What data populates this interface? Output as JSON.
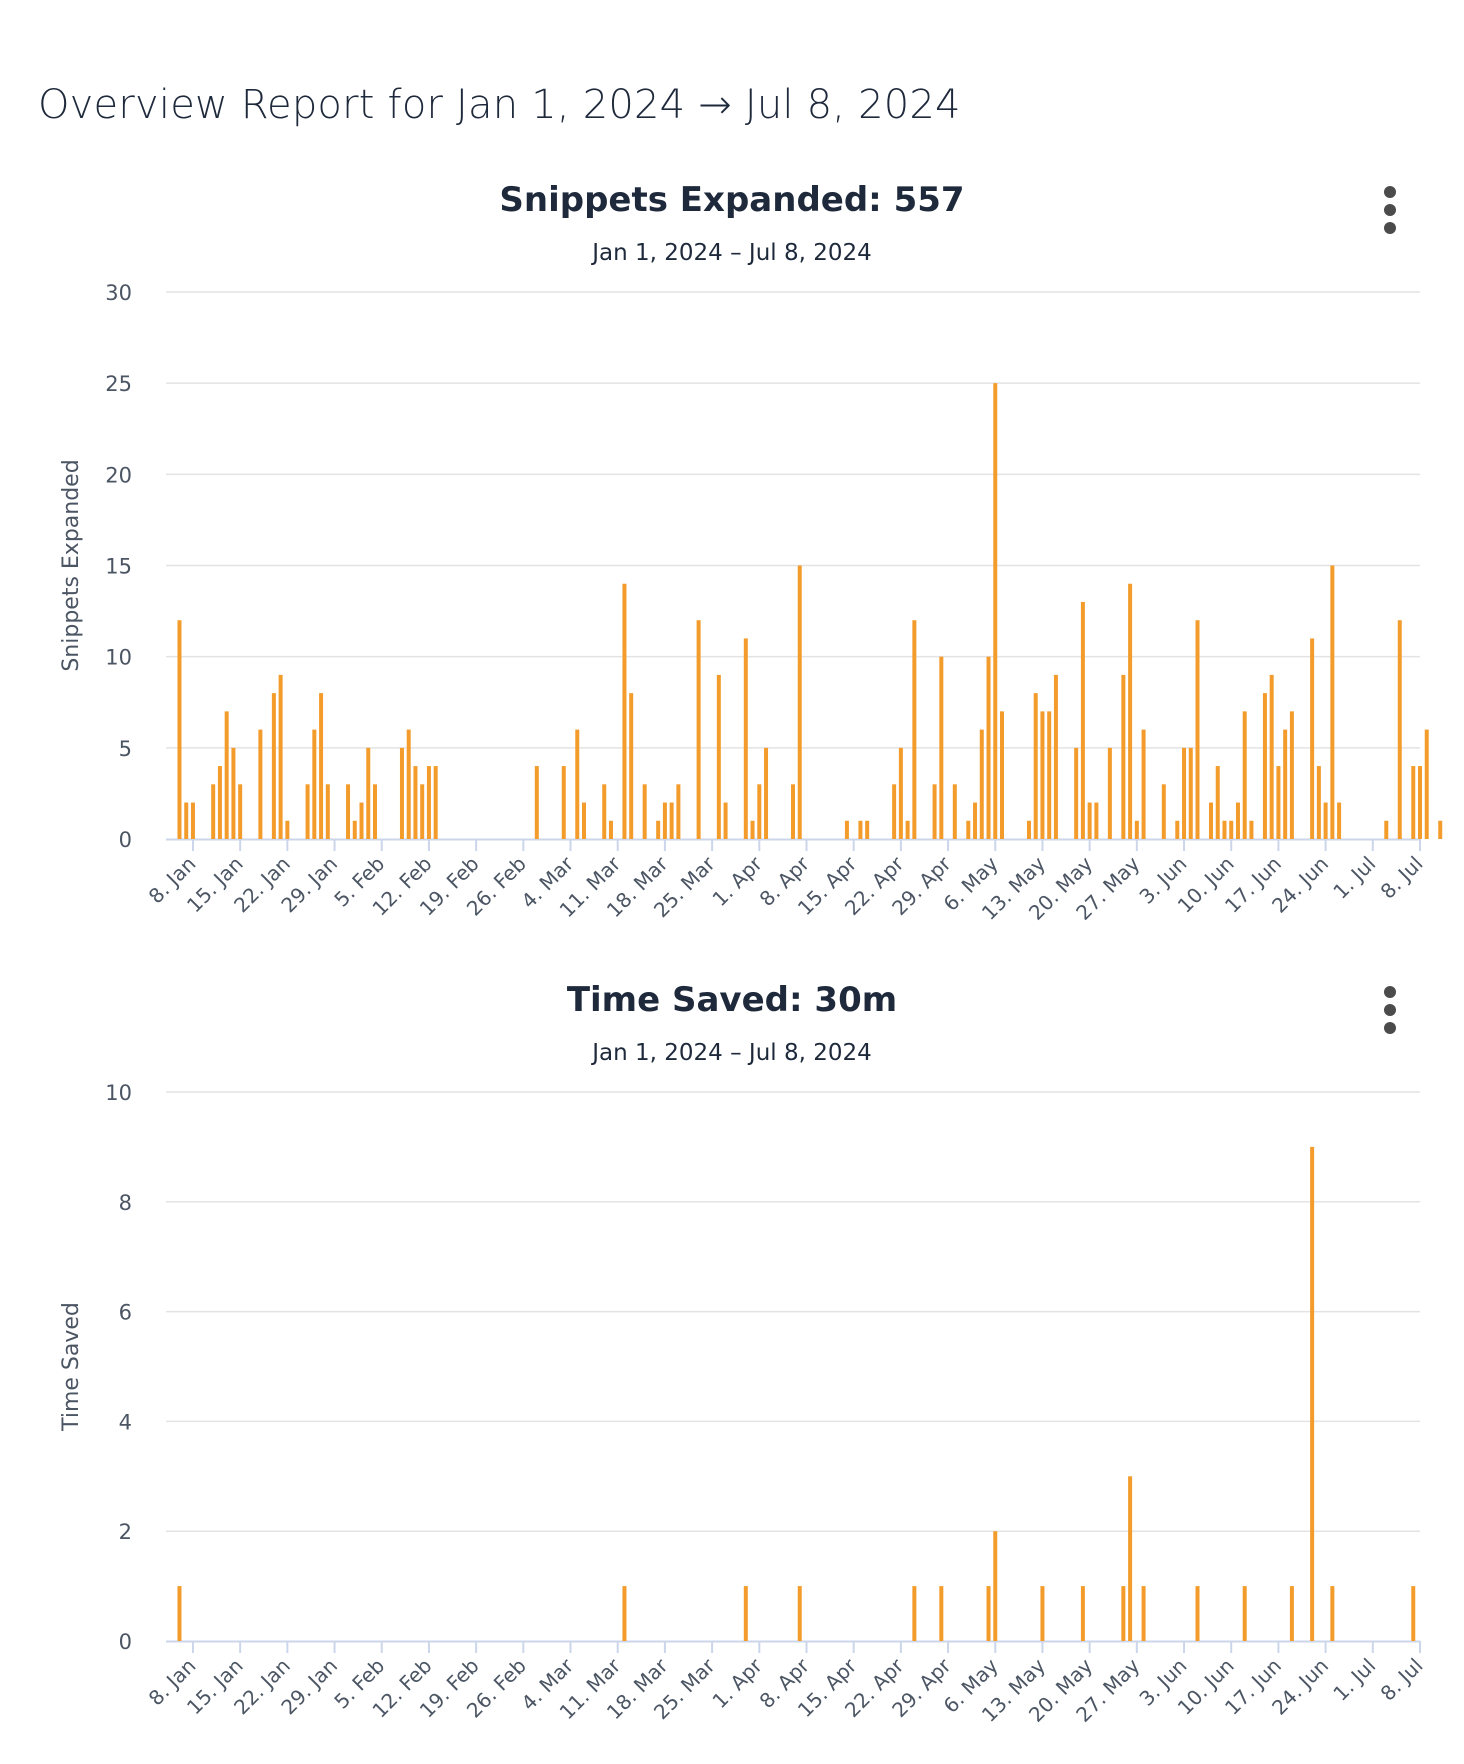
{
  "report": {
    "title": "Overview Report for Jan 1, 2024 → Jul 8, 2024"
  },
  "colors": {
    "bar": "#f39c2c",
    "grid": "#e3e3e3",
    "axis": "#ccd6eb",
    "text": "#1e293b"
  },
  "icons": {
    "chart_menu": "vertical-ellipsis-icon"
  },
  "chart_data": [
    {
      "type": "bar",
      "title": "Snippets Expanded: 557",
      "subtitle": "Jan 1, 2024 – Jul 8, 2024",
      "ylabel": "Snippets Expanded",
      "xlabel": "",
      "ylim": [
        0,
        30
      ],
      "yticks": [
        0,
        5,
        10,
        15,
        20,
        25,
        30
      ],
      "xrange": [
        "2024-01-04",
        "2024-07-08"
      ],
      "xticks": [
        "8. Jan",
        "15. Jan",
        "22. Jan",
        "29. Jan",
        "5. Feb",
        "12. Feb",
        "19. Feb",
        "26. Feb",
        "4. Mar",
        "11. Mar",
        "18. Mar",
        "25. Mar",
        "1. Apr",
        "8. Apr",
        "15. Apr",
        "22. Apr",
        "29. Apr",
        "6. May",
        "13. May",
        "20. May",
        "27. May",
        "3. Jun",
        "10. Jun",
        "17. Jun",
        "24. Jun",
        "1. Jul",
        "8. Jul"
      ],
      "xtick_dates": [
        "2024-01-08",
        "2024-01-15",
        "2024-01-22",
        "2024-01-29",
        "2024-02-05",
        "2024-02-12",
        "2024-02-19",
        "2024-02-26",
        "2024-03-04",
        "2024-03-11",
        "2024-03-18",
        "2024-03-25",
        "2024-04-01",
        "2024-04-08",
        "2024-04-15",
        "2024-04-22",
        "2024-04-29",
        "2024-05-06",
        "2024-05-13",
        "2024-05-20",
        "2024-05-27",
        "2024-06-03",
        "2024-06-10",
        "2024-06-17",
        "2024-06-24",
        "2024-07-01",
        "2024-07-08"
      ],
      "grid": true,
      "legend": "none",
      "series": [
        {
          "x": [
            "2024-01-06",
            "2024-01-07",
            "2024-01-08",
            "2024-01-11",
            "2024-01-12",
            "2024-01-13",
            "2024-01-14",
            "2024-01-15",
            "2024-01-18",
            "2024-01-20",
            "2024-01-21",
            "2024-01-22",
            "2024-01-25",
            "2024-01-26",
            "2024-01-27",
            "2024-01-28",
            "2024-01-31",
            "2024-02-01",
            "2024-02-02",
            "2024-02-03",
            "2024-02-04",
            "2024-02-08",
            "2024-02-09",
            "2024-02-10",
            "2024-02-11",
            "2024-02-12",
            "2024-02-13",
            "2024-02-28",
            "2024-03-03",
            "2024-03-05",
            "2024-03-06",
            "2024-03-09",
            "2024-03-10",
            "2024-03-12",
            "2024-03-13",
            "2024-03-15",
            "2024-03-17",
            "2024-03-18",
            "2024-03-19",
            "2024-03-20",
            "2024-03-23",
            "2024-03-26",
            "2024-03-27",
            "2024-03-30",
            "2024-03-31",
            "2024-04-01",
            "2024-04-02",
            "2024-04-06",
            "2024-04-07",
            "2024-04-14",
            "2024-04-16",
            "2024-04-17",
            "2024-04-21",
            "2024-04-22",
            "2024-04-23",
            "2024-04-24",
            "2024-04-27",
            "2024-04-28",
            "2024-04-30",
            "2024-05-02",
            "2024-05-03",
            "2024-05-04",
            "2024-05-05",
            "2024-05-06",
            "2024-05-07",
            "2024-05-11",
            "2024-05-12",
            "2024-05-13",
            "2024-05-14",
            "2024-05-15",
            "2024-05-18",
            "2024-05-19",
            "2024-05-20",
            "2024-05-21",
            "2024-05-23",
            "2024-05-25",
            "2024-05-26",
            "2024-05-27",
            "2024-05-28",
            "2024-05-31",
            "2024-06-02",
            "2024-06-03",
            "2024-06-04",
            "2024-06-05",
            "2024-06-07",
            "2024-06-08",
            "2024-06-09",
            "2024-06-10",
            "2024-06-11",
            "2024-06-12",
            "2024-06-13",
            "2024-06-15",
            "2024-06-16",
            "2024-06-17",
            "2024-06-18",
            "2024-06-19",
            "2024-06-22",
            "2024-06-23",
            "2024-06-24",
            "2024-06-25",
            "2024-06-26",
            "2024-07-03",
            "2024-07-05",
            "2024-07-07",
            "2024-07-08",
            "2024-07-09",
            "2024-07-11"
          ],
          "values": [
            12,
            2,
            2,
            3,
            4,
            7,
            5,
            3,
            6,
            8,
            9,
            1,
            3,
            6,
            8,
            3,
            3,
            1,
            2,
            5,
            3,
            5,
            6,
            4,
            3,
            4,
            4,
            4,
            4,
            6,
            2,
            3,
            1,
            14,
            8,
            3,
            1,
            2,
            2,
            3,
            12,
            9,
            2,
            11,
            1,
            3,
            5,
            3,
            15,
            1,
            1,
            1,
            3,
            5,
            1,
            12,
            3,
            10,
            3,
            1,
            2,
            6,
            10,
            25,
            7,
            1,
            8,
            7,
            7,
            9,
            5,
            13,
            2,
            2,
            5,
            9,
            14,
            1,
            6,
            3,
            1,
            5,
            5,
            12,
            2,
            4,
            1,
            1,
            2,
            7,
            1,
            8,
            9,
            4,
            6,
            7,
            11,
            4,
            2,
            15,
            2,
            1,
            12,
            4,
            4,
            6,
            1
          ]
        }
      ]
    },
    {
      "type": "bar",
      "title": "Time Saved: 30m",
      "subtitle": "Jan 1, 2024 – Jul 8, 2024",
      "ylabel": "Time Saved",
      "xlabel": "",
      "ylim": [
        0,
        10
      ],
      "yticks": [
        0,
        2,
        4,
        6,
        8,
        10
      ],
      "xrange": [
        "2024-01-04",
        "2024-07-08"
      ],
      "xticks": [
        "8. Jan",
        "15. Jan",
        "22. Jan",
        "29. Jan",
        "5. Feb",
        "12. Feb",
        "19. Feb",
        "26. Feb",
        "4. Mar",
        "11. Mar",
        "18. Mar",
        "25. Mar",
        "1. Apr",
        "8. Apr",
        "15. Apr",
        "22. Apr",
        "29. Apr",
        "6. May",
        "13. May",
        "20. May",
        "27. May",
        "3. Jun",
        "10. Jun",
        "17. Jun",
        "24. Jun",
        "1. Jul",
        "8. Jul"
      ],
      "xtick_dates": [
        "2024-01-08",
        "2024-01-15",
        "2024-01-22",
        "2024-01-29",
        "2024-02-05",
        "2024-02-12",
        "2024-02-19",
        "2024-02-26",
        "2024-03-04",
        "2024-03-11",
        "2024-03-18",
        "2024-03-25",
        "2024-04-01",
        "2024-04-08",
        "2024-04-15",
        "2024-04-22",
        "2024-04-29",
        "2024-05-06",
        "2024-05-13",
        "2024-05-20",
        "2024-05-27",
        "2024-06-03",
        "2024-06-10",
        "2024-06-17",
        "2024-06-24",
        "2024-07-01",
        "2024-07-08"
      ],
      "grid": true,
      "legend": "none",
      "series": [
        {
          "x": [
            "2024-01-06",
            "2024-03-12",
            "2024-03-30",
            "2024-04-07",
            "2024-04-24",
            "2024-04-28",
            "2024-05-05",
            "2024-05-06",
            "2024-05-13",
            "2024-05-19",
            "2024-05-25",
            "2024-05-26",
            "2024-05-28",
            "2024-06-05",
            "2024-06-12",
            "2024-06-19",
            "2024-06-22",
            "2024-06-25",
            "2024-07-07"
          ],
          "values": [
            1,
            1,
            1,
            1,
            1,
            1,
            1,
            2,
            1,
            1,
            1,
            3,
            1,
            1,
            1,
            1,
            9,
            1,
            1
          ]
        }
      ]
    }
  ]
}
